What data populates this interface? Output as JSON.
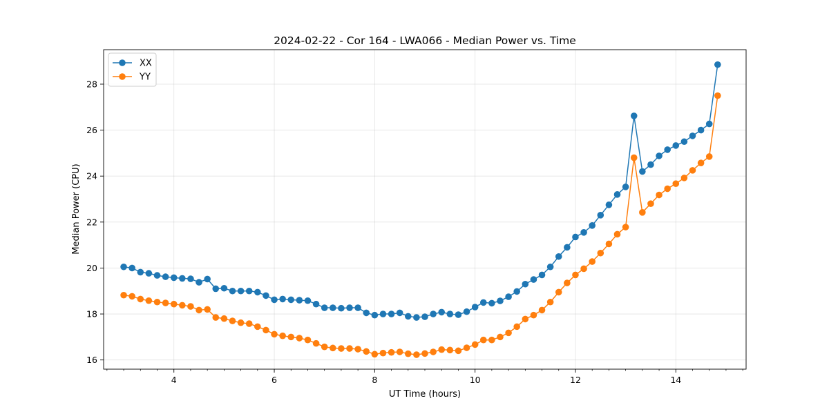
{
  "chart_data": {
    "type": "line",
    "title": "2024-02-22 - Cor 164 - LWA066 - Median Power vs. Time",
    "xlabel": "UT Time (hours)",
    "ylabel": "Median Power (CPU)",
    "xlim": [
      2.6,
      15.4
    ],
    "ylim": [
      15.6,
      29.5
    ],
    "xticks": [
      4,
      6,
      8,
      10,
      12,
      14
    ],
    "yticks": [
      16,
      18,
      20,
      22,
      24,
      26,
      28
    ],
    "x_minor_step": 0.333333,
    "grid": true,
    "legend_position": "upper-left",
    "x": [
      3.0,
      3.1667,
      3.3333,
      3.5,
      3.6667,
      3.8333,
      4.0,
      4.1667,
      4.3333,
      4.5,
      4.6667,
      4.8333,
      5.0,
      5.1667,
      5.3333,
      5.5,
      5.6667,
      5.8333,
      6.0,
      6.1667,
      6.3333,
      6.5,
      6.6667,
      6.8333,
      7.0,
      7.1667,
      7.3333,
      7.5,
      7.6667,
      7.8333,
      8.0,
      8.1667,
      8.3333,
      8.5,
      8.6667,
      8.8333,
      9.0,
      9.1667,
      9.3333,
      9.5,
      9.6667,
      9.8333,
      10.0,
      10.1667,
      10.3333,
      10.5,
      10.6667,
      10.8333,
      11.0,
      11.1667,
      11.3333,
      11.5,
      11.6667,
      11.8333,
      12.0,
      12.1667,
      12.3333,
      12.5,
      12.6667,
      12.8333,
      13.0,
      13.1667,
      13.3333,
      13.5,
      13.6667,
      13.8333,
      14.0,
      14.1667,
      14.3333,
      14.5,
      14.6667,
      14.8333
    ],
    "series": [
      {
        "name": "XX",
        "color": "#1f77b4",
        "values": [
          20.05,
          20.0,
          19.82,
          19.77,
          19.68,
          19.62,
          19.58,
          19.55,
          19.53,
          19.38,
          19.52,
          19.1,
          19.12,
          19.0,
          19.0,
          19.0,
          18.95,
          18.8,
          18.62,
          18.65,
          18.62,
          18.6,
          18.58,
          18.43,
          18.27,
          18.27,
          18.25,
          18.27,
          18.27,
          18.05,
          17.95,
          18.0,
          18.0,
          18.05,
          17.9,
          17.85,
          17.88,
          18.0,
          18.08,
          18.0,
          17.97,
          18.1,
          18.3,
          18.5,
          18.47,
          18.57,
          18.75,
          18.98,
          19.3,
          19.5,
          19.7,
          20.05,
          20.5,
          20.9,
          21.35,
          21.55,
          21.85,
          22.3,
          22.75,
          23.2,
          23.53,
          26.62,
          24.2,
          24.5,
          24.88,
          25.15,
          25.33,
          25.5,
          25.75,
          26.0,
          26.27,
          28.85
        ]
      },
      {
        "name": "YY",
        "color": "#ff7f0e",
        "values": [
          18.82,
          18.77,
          18.65,
          18.58,
          18.52,
          18.48,
          18.43,
          18.38,
          18.33,
          18.17,
          18.2,
          17.85,
          17.8,
          17.7,
          17.62,
          17.58,
          17.45,
          17.3,
          17.12,
          17.05,
          17.0,
          16.95,
          16.87,
          16.72,
          16.57,
          16.52,
          16.5,
          16.5,
          16.47,
          16.37,
          16.25,
          16.3,
          16.33,
          16.35,
          16.27,
          16.23,
          16.28,
          16.35,
          16.45,
          16.43,
          16.4,
          16.53,
          16.67,
          16.87,
          16.87,
          17.0,
          17.18,
          17.45,
          17.78,
          17.95,
          18.17,
          18.52,
          18.95,
          19.35,
          19.7,
          19.97,
          20.28,
          20.65,
          21.05,
          21.47,
          21.78,
          24.8,
          22.42,
          22.8,
          23.18,
          23.45,
          23.67,
          23.92,
          24.25,
          24.57,
          24.85,
          27.5
        ]
      }
    ]
  }
}
